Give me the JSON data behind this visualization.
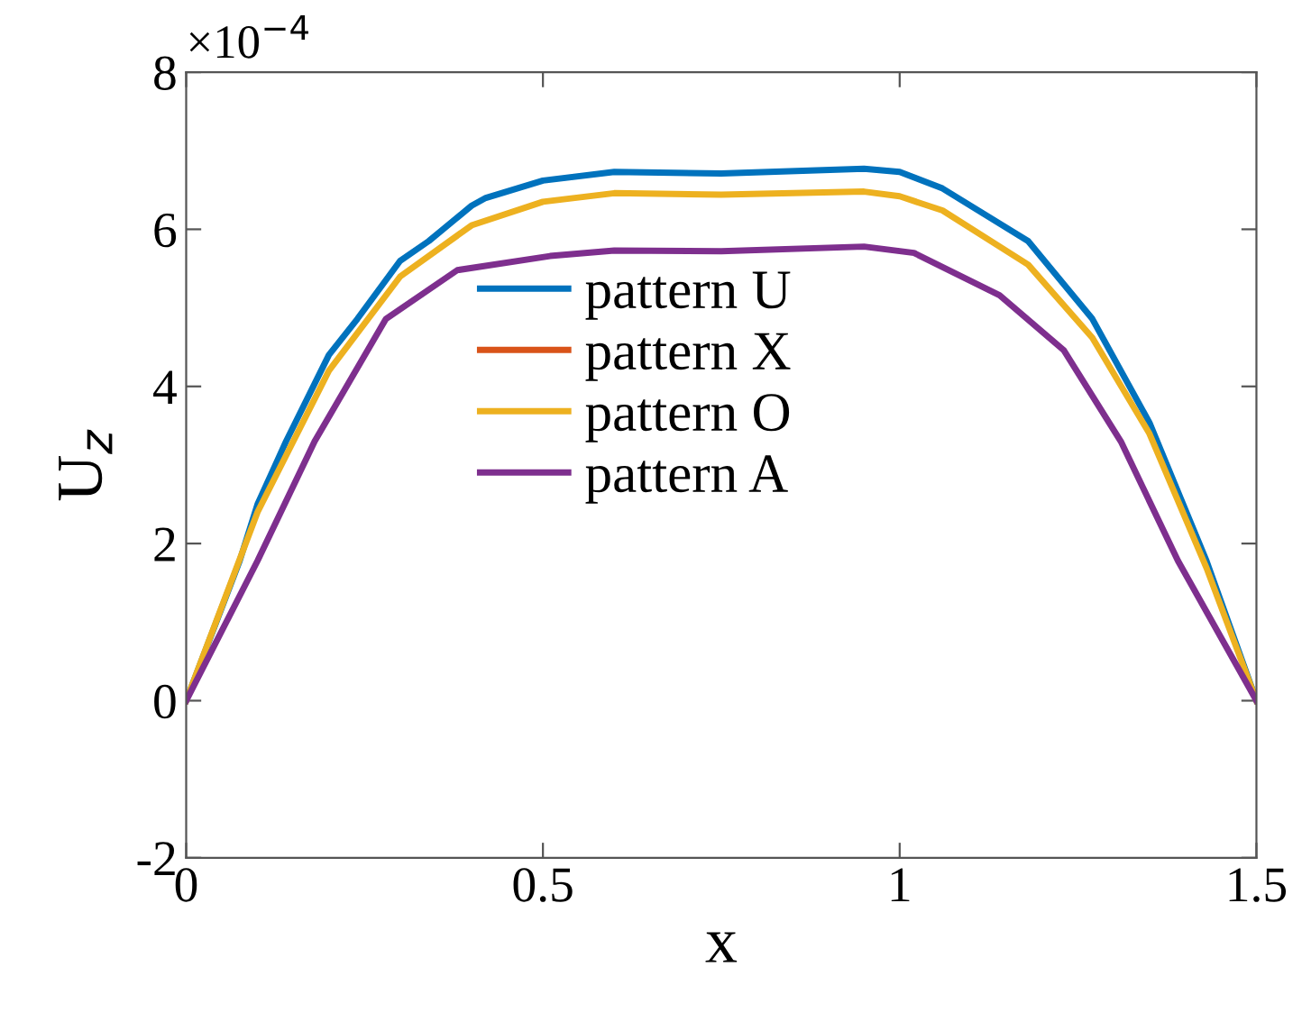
{
  "chart_data": {
    "type": "line",
    "xlabel": "x",
    "ylabel": "U$_{z}$",
    "annotations": [
      "×10$^{−4}$"
    ],
    "xlim": [
      0,
      1.5
    ],
    "xticks": [
      0,
      0.5,
      1,
      1.5
    ],
    "ylim": [
      -2,
      8
    ],
    "yticks": [
      -2,
      0,
      2,
      4,
      6,
      8
    ],
    "grid": false,
    "legend": "center",
    "line_style": "solid",
    "marker": "none",
    "series": [
      {
        "name": "pattern U",
        "color": "#0072bd",
        "x": [
          0,
          0.075,
          0.1,
          0.14,
          0.2,
          0.24,
          0.3,
          0.34,
          0.4,
          0.42,
          0.5,
          0.6,
          0.75,
          0.95,
          1.0,
          1.06,
          1.18,
          1.27,
          1.35,
          1.43,
          1.5
        ],
        "values": [
          0,
          1.78,
          2.5,
          3.3,
          4.4,
          4.86,
          5.6,
          5.85,
          6.3,
          6.4,
          6.62,
          6.73,
          6.71,
          6.77,
          6.73,
          6.52,
          5.85,
          4.86,
          3.54,
          1.78,
          0
        ]
      },
      {
        "name": "pattern X",
        "color": "#d95319"
      },
      {
        "name": "pattern O",
        "color": "#edb120",
        "x": [
          0,
          0.1,
          0.2,
          0.3,
          0.4,
          0.5,
          0.6,
          0.75,
          0.95,
          1.0,
          1.06,
          1.18,
          1.27,
          1.35,
          1.43,
          1.5
        ],
        "values": [
          0,
          2.4,
          4.2,
          5.4,
          6.05,
          6.35,
          6.46,
          6.44,
          6.48,
          6.42,
          6.24,
          5.55,
          4.62,
          3.4,
          1.69,
          0
        ]
      },
      {
        "name": "pattern A",
        "color": "#7e2f8e",
        "x": [
          0,
          0.1,
          0.18,
          0.28,
          0.38,
          0.51,
          0.6,
          0.75,
          0.95,
          1.02,
          1.14,
          1.23,
          1.31,
          1.39,
          1.5
        ],
        "values": [
          0,
          1.78,
          3.3,
          4.86,
          5.48,
          5.66,
          5.73,
          5.72,
          5.78,
          5.7,
          5.16,
          4.46,
          3.3,
          1.78,
          0
        ]
      }
    ]
  }
}
